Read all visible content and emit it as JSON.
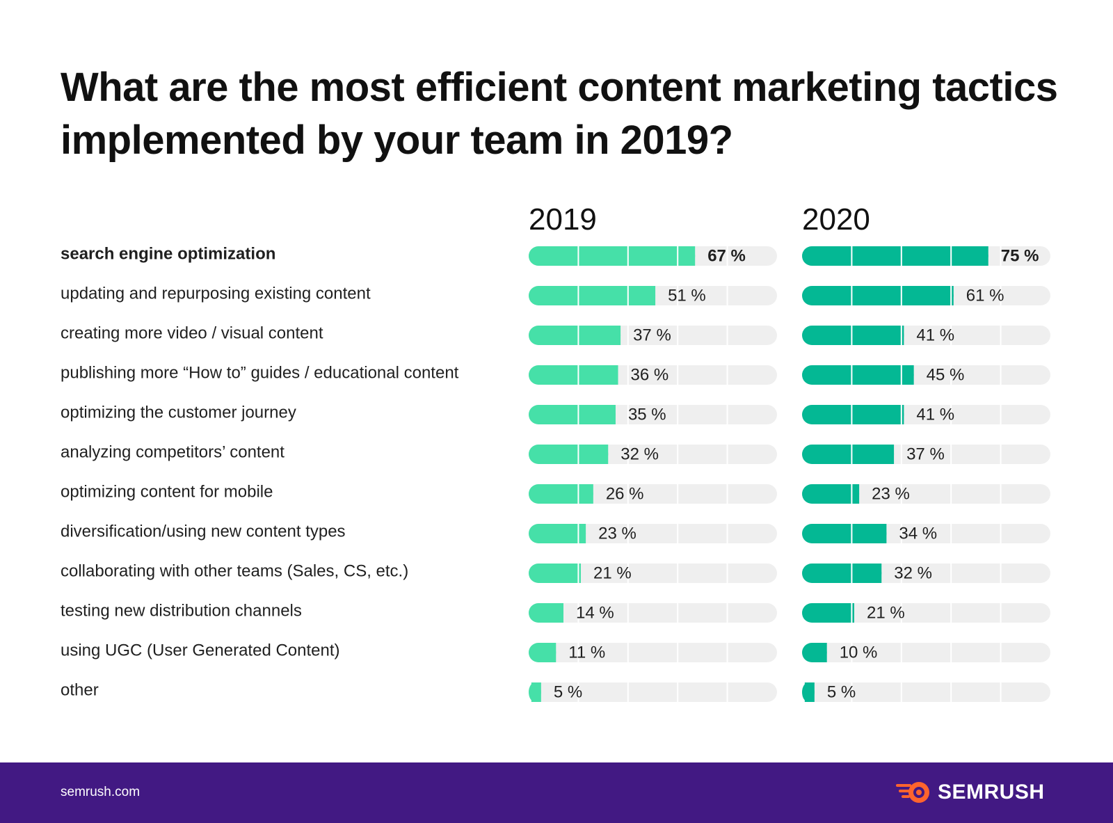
{
  "title": "What are the most efficient content marketing tactics implemented by your team in 2019?",
  "footer": {
    "url": "semrush.com",
    "brand": "SEMRUSH",
    "brand_icon": "semrush-flame-logo"
  },
  "colors": {
    "series_2019": "#46e0a8",
    "series_2020": "#04b894",
    "track": "#efefef",
    "footer_bg": "#421983",
    "logo_accent": "#ff642d"
  },
  "chart_data": {
    "type": "bar",
    "orientation": "horizontal",
    "title": "What are the most efficient content marketing tactics implemented by your team in 2019?",
    "xlim": [
      0,
      100
    ],
    "unit": "%",
    "grid": true,
    "categories": [
      "search engine optimization",
      "updating and repurposing existing content",
      "creating more video / visual content",
      "publishing more “How to” guides / educational content",
      "optimizing the customer journey",
      "analyzing competitors’ content",
      "optimizing content for mobile",
      "diversification/using new content types",
      "collaborating with other teams (Sales, CS, etc.)",
      "testing new distribution channels",
      "using UGC (User Generated Content)",
      "other"
    ],
    "series": [
      {
        "name": "2019",
        "values": [
          67,
          51,
          37,
          36,
          35,
          32,
          26,
          23,
          21,
          14,
          11,
          5
        ]
      },
      {
        "name": "2020",
        "values": [
          75,
          61,
          41,
          45,
          41,
          37,
          23,
          34,
          32,
          21,
          10,
          5
        ]
      }
    ],
    "highlighted_category": "search engine optimization"
  }
}
